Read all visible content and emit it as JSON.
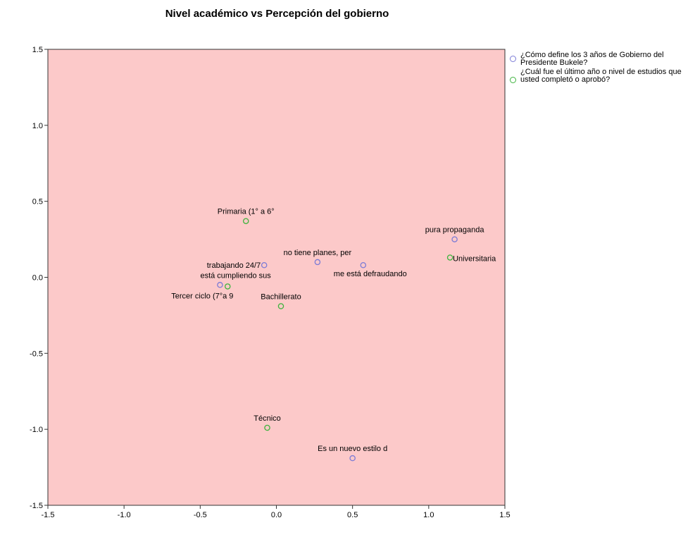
{
  "chart_data": {
    "type": "scatter",
    "title": "Nivel académico vs Percepción del gobierno",
    "xlabel": "",
    "ylabel": "",
    "xlim": [
      -1.5,
      1.5
    ],
    "ylim": [
      -1.5,
      1.5
    ],
    "x_ticks": [
      "-1.5",
      "-1.0",
      "-0.5",
      "0.0",
      "0.5",
      "1.0",
      "1.5"
    ],
    "y_ticks": [
      "1.5",
      "1.0",
      "0.5",
      "0.0",
      "-0.5",
      "-1.0",
      "-1.5"
    ],
    "plot_background": "#fcc9c9",
    "grid": false,
    "legend_position": "top-right outside",
    "series": [
      {
        "name": "¿Cómo define los 3 años de Gobierno del Presidente Bukele?",
        "color": "#7b7bd6",
        "points": [
          {
            "label": "pura propaganda",
            "x": 1.17,
            "y": 0.25
          },
          {
            "label": "no tiene planes, per",
            "x": 0.27,
            "y": 0.1
          },
          {
            "label": "me está defraudando",
            "x": 0.57,
            "y": 0.08
          },
          {
            "label": "trabajando 24/7",
            "x": -0.08,
            "y": 0.08
          },
          {
            "label": "está cumpliendo sus",
            "x": -0.37,
            "y": -0.05
          },
          {
            "label": "Es un nuevo estilo d",
            "x": 0.5,
            "y": -1.19
          }
        ]
      },
      {
        "name": "¿Cuál fue el último año o nivel de estudios que usted completó o aprobó?",
        "color": "#3db33d",
        "points": [
          {
            "label": "Primaria (1° a 6°",
            "x": -0.2,
            "y": 0.37
          },
          {
            "label": "Universitaria",
            "x": 1.14,
            "y": 0.13
          },
          {
            "label": "Tercer ciclo (7°a 9",
            "x": -0.32,
            "y": -0.06
          },
          {
            "label": "Bachillerato",
            "x": 0.03,
            "y": -0.19
          },
          {
            "label": "Técnico",
            "x": -0.06,
            "y": -0.99
          }
        ]
      }
    ]
  }
}
